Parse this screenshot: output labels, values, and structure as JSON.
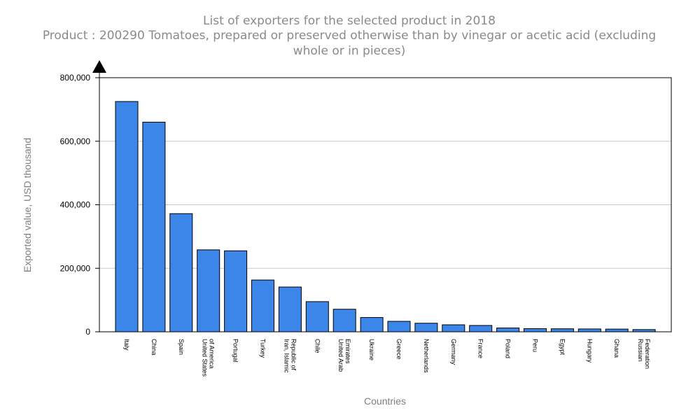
{
  "chart_data": {
    "type": "bar",
    "title": "List of exporters for the selected product in 2018",
    "subtitle_lines": [
      "Product : 200290 Tomatoes, prepared or preserved otherwise than by vinegar or acetic acid (excluding",
      "whole or in pieces)"
    ],
    "xlabel": "Countries",
    "ylabel": "Exported value, USD thousand",
    "ylim": [
      0,
      800000
    ],
    "yticks": [
      0,
      200000,
      400000,
      600000,
      800000
    ],
    "ytick_labels": [
      "0",
      "200,000",
      "400,000",
      "600,000",
      "800,000"
    ],
    "grid": true,
    "bar_color": "#3b86e8",
    "categories": [
      [
        "Italy"
      ],
      [
        "China"
      ],
      [
        "Spain"
      ],
      [
        "United States",
        "of America"
      ],
      [
        "Portugal"
      ],
      [
        "Turkey"
      ],
      [
        "Iran, Islamic",
        "Republic of"
      ],
      [
        "Chile"
      ],
      [
        "United Arab",
        "Emirates"
      ],
      [
        "Ukraine"
      ],
      [
        "Greece"
      ],
      [
        "Netherlands"
      ],
      [
        "Germany"
      ],
      [
        "France"
      ],
      [
        "Poland"
      ],
      [
        "Peru"
      ],
      [
        "Egypt"
      ],
      [
        "Hungary"
      ],
      [
        "Ghana"
      ],
      [
        "Russian",
        "Federation"
      ]
    ],
    "values": [
      725000,
      660000,
      372000,
      258000,
      255000,
      163000,
      141000,
      95000,
      71000,
      45000,
      33000,
      27000,
      22000,
      20000,
      12000,
      10000,
      9500,
      9000,
      8500,
      7000
    ]
  }
}
